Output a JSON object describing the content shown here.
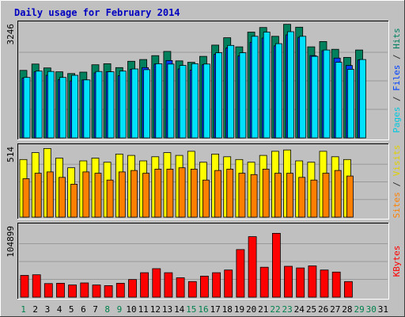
{
  "chart_data": {
    "type": "bar",
    "title": "Daily usage for February 2014",
    "categories": [
      "1",
      "2",
      "3",
      "4",
      "5",
      "6",
      "7",
      "8",
      "9",
      "10",
      "11",
      "12",
      "13",
      "14",
      "15",
      "16",
      "17",
      "18",
      "19",
      "20",
      "21",
      "22",
      "23",
      "24",
      "25",
      "26",
      "27",
      "28",
      "29",
      "30",
      "31"
    ],
    "weekend_days": [
      1,
      8,
      9,
      15,
      16,
      22,
      23,
      29,
      30
    ],
    "future_days": [
      29,
      30,
      31
    ],
    "panels": [
      {
        "id": "hits_files_pages",
        "max_label": "3246",
        "ylim": [
          0,
          3246
        ],
        "side_labels": [
          {
            "text": "Pages",
            "color": "#00c8e0"
          },
          {
            "text": " / ",
            "color": "#333333"
          },
          {
            "text": "Files",
            "color": "#0040ff"
          },
          {
            "text": " / ",
            "color": "#333333"
          },
          {
            "text": "Hits",
            "color": "#008060"
          }
        ],
        "series": [
          {
            "name": "Hits",
            "color": "#00805c",
            "values": [
              1920,
              2100,
              1990,
              1880,
              1830,
              1870,
              2080,
              2110,
              2000,
              2180,
              2230,
              2340,
              2460,
              2190,
              2150,
              2320,
              2640,
              2850,
              2590,
              3010,
              3140,
              2890,
              3230,
              3150,
              2590,
              2740,
              2520,
              2290,
              2500,
              0,
              0
            ]
          },
          {
            "name": "Files",
            "color": "#0040ff",
            "values": [
              1700,
              1880,
              1780,
              1660,
              1620,
              1650,
              1850,
              1880,
              1770,
              1950,
              2000,
              2100,
              2200,
              1960,
              1930,
              2080,
              2380,
              2560,
              2330,
              2720,
              2840,
              2620,
              2930,
              2860,
              2340,
              2480,
              2270,
              2060,
              2220,
              0,
              0
            ]
          },
          {
            "name": "Pages",
            "color": "#00e0ff",
            "values": [
              1720,
              1900,
              1890,
              1720,
              1780,
              1650,
              1890,
              1880,
              1900,
              1960,
              1940,
              2110,
              2100,
              2060,
              2110,
              2100,
              2420,
              2630,
              2420,
              2890,
              3010,
              2680,
              3020,
              2890,
              2320,
              2500,
              2150,
              1950,
              2230,
              0,
              0
            ]
          }
        ]
      },
      {
        "id": "visits_sites",
        "max_label": "514",
        "ylim": [
          0,
          514
        ],
        "side_labels": [
          {
            "text": "Sites",
            "color": "#ff8000"
          },
          {
            "text": " / ",
            "color": "#333333"
          },
          {
            "text": "Visits",
            "color": "#e0d000"
          }
        ],
        "series": [
          {
            "name": "Visits",
            "color": "#ffff00",
            "values": [
              420,
              470,
              500,
              430,
              360,
              410,
              430,
              400,
              460,
              450,
              410,
              440,
              470,
              450,
              480,
              400,
              460,
              440,
              420,
              400,
              450,
              480,
              490,
              410,
              400,
              480,
              440,
              420,
              0,
              0,
              0
            ]
          },
          {
            "name": "Sites",
            "color": "#ff8000",
            "values": [
              280,
              320,
              330,
              290,
              240,
              330,
              320,
              270,
              330,
              340,
              320,
              350,
              350,
              360,
              350,
              270,
              340,
              350,
              320,
              310,
              350,
              320,
              320,
              290,
              270,
              320,
              340,
              300,
              0,
              0,
              0
            ]
          }
        ]
      },
      {
        "id": "kbytes",
        "max_label": "104899",
        "ylim": [
          0,
          104899
        ],
        "side_labels": [
          {
            "text": "KBytes",
            "color": "#ff0000"
          }
        ],
        "series": [
          {
            "name": "KBytes",
            "color": "#ff0000",
            "values": [
              32000,
              33000,
              20000,
              20500,
              18000,
              21000,
              18000,
              17000,
              20500,
              26000,
              36000,
              42000,
              36000,
              28500,
              23000,
              31000,
              36000,
              40000,
              70000,
              89000,
              44000,
              94000,
              45500,
              43000,
              46000,
              40000,
              37000,
              23000,
              0,
              0,
              0
            ]
          }
        ]
      }
    ]
  }
}
